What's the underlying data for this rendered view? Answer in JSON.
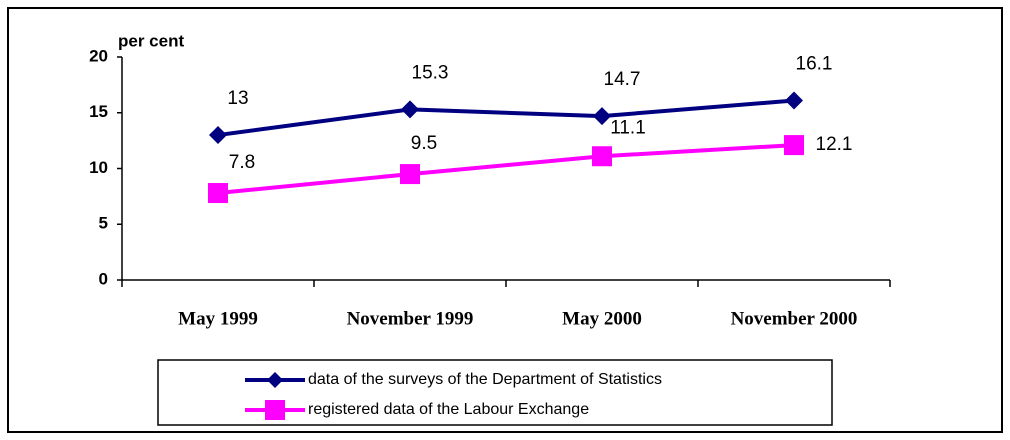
{
  "chart_data": {
    "type": "line",
    "y_label": "per cent",
    "categories": [
      "May 1999",
      "November 1999",
      "May 2000",
      "November 2000"
    ],
    "series": [
      {
        "name": "data of the surveys of the Department of Statistics",
        "color": "#000080",
        "marker": "diamond",
        "values": [
          13,
          15.3,
          14.7,
          16.1
        ]
      },
      {
        "name": "registered data of the Labour Exchange",
        "color": "#ff00ff",
        "marker": "square",
        "values": [
          7.8,
          9.5,
          11.1,
          12.1
        ]
      }
    ],
    "ylim": [
      0,
      20
    ],
    "yticks": [
      0,
      5,
      10,
      15,
      20
    ],
    "grid": false,
    "legend": "bottom"
  }
}
